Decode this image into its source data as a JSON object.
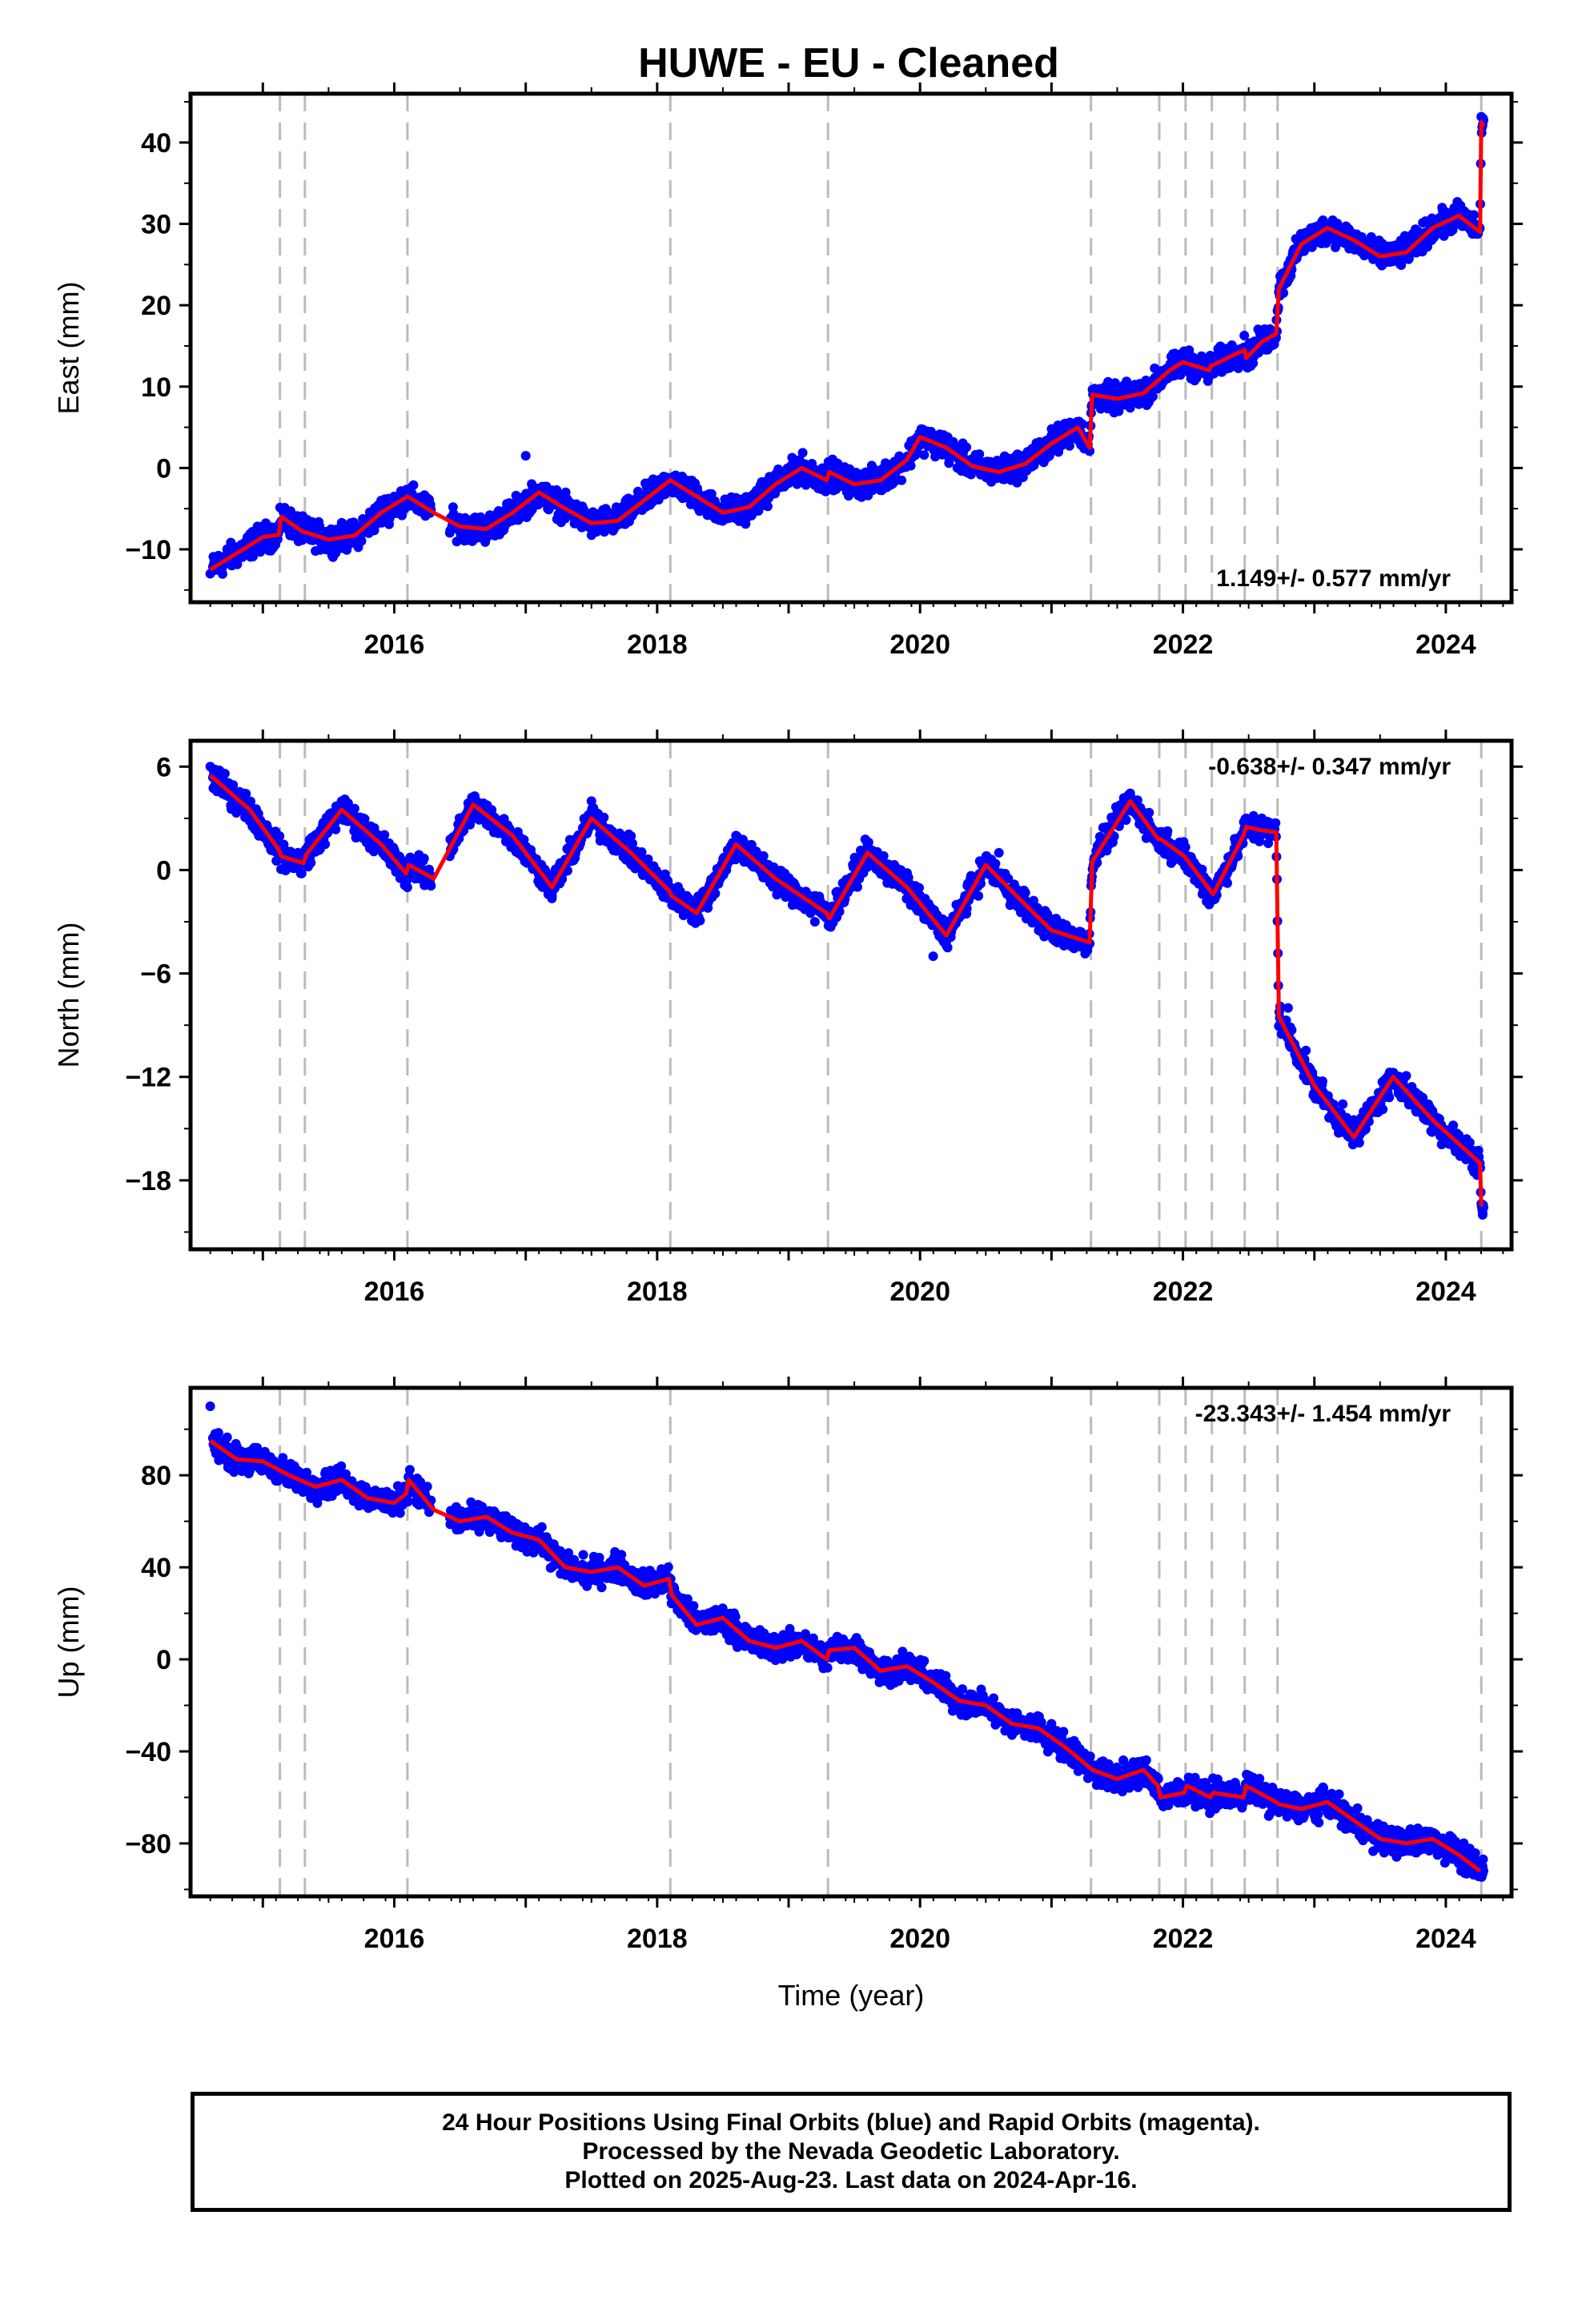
{
  "figure_title": "HUWE  - EU - Cleaned",
  "footer": {
    "line1": "24 Hour Positions Using Final Orbits (blue) and Rapid Orbits (magenta).",
    "line2": "Processed by the Nevada Geodetic Laboratory.",
    "line3": "Plotted on 2025-Aug-23. Last data on 2024-Apr-16."
  },
  "colors": {
    "data": "#0000ff",
    "model": "#ff0000",
    "breaks": "#bbbbbb",
    "frame": "#000000"
  },
  "chart_data": [
    {
      "type": "scatter",
      "component": "east",
      "ylabel": "East (mm)",
      "xlabel": "",
      "xlim": [
        2014.45,
        2024.5
      ],
      "ylim": [
        -16.5,
        46
      ],
      "yticks": [
        -10,
        0,
        10,
        20,
        30,
        40
      ],
      "xticks": [
        2016,
        2018,
        2020,
        2022,
        2024
      ],
      "rate_label": "1.149+/- 0.577 mm/yr",
      "rate_position": "bottom-right",
      "breaks": [
        2015.13,
        2015.32,
        2016.1,
        2018.1,
        2019.3,
        2021.3,
        2021.82,
        2022.02,
        2022.22,
        2022.47,
        2022.72,
        2024.27
      ],
      "series": [
        {
          "kind": "model",
          "x": [
            2014.6,
            2014.8,
            2015.0,
            2015.12,
            2015.14,
            2015.3,
            2015.5,
            2015.7,
            2015.9,
            2016.1,
            2016.3,
            2016.5,
            2016.7,
            2016.9,
            2017.1,
            2017.3,
            2017.5,
            2017.7,
            2017.9,
            2018.1,
            2018.3,
            2018.5,
            2018.7,
            2018.9,
            2019.1,
            2019.29,
            2019.31,
            2019.5,
            2019.7,
            2019.9,
            2020.0,
            2020.2,
            2020.4,
            2020.6,
            2020.8,
            2021.0,
            2021.2,
            2021.29,
            2021.31,
            2021.5,
            2021.7,
            2021.9,
            2022.0,
            2022.2,
            2022.21,
            2022.4,
            2022.47,
            2022.48,
            2022.6,
            2022.71,
            2022.73,
            2022.9,
            2023.1,
            2023.3,
            2023.5,
            2023.7,
            2023.9,
            2024.1,
            2024.26,
            2024.27,
            2024.29
          ],
          "y": [
            -12.5,
            -10.5,
            -8.5,
            -8.2,
            -6,
            -7.8,
            -8.8,
            -8.3,
            -5.5,
            -3.5,
            -5.5,
            -7.2,
            -7.5,
            -5.5,
            -3,
            -5,
            -6.8,
            -6.5,
            -4,
            -1.5,
            -3.5,
            -5.5,
            -4.8,
            -2,
            0,
            -1.5,
            -0.5,
            -2,
            -1.5,
            1,
            3.8,
            2.5,
            0.2,
            -0.5,
            0.5,
            3,
            5,
            2.5,
            9,
            8.5,
            9.2,
            12,
            13,
            12,
            12.5,
            14,
            14.5,
            13.5,
            15.5,
            16.5,
            22,
            27.5,
            29.5,
            28,
            26,
            26.5,
            29.5,
            31,
            29,
            42.5,
            42
          ]
        },
        {
          "kind": "data",
          "x": [
            2014.6,
            2015.0,
            2015.5,
            2015.9,
            2016.0,
            2016.5,
            2017.0,
            2017.5,
            2018.0,
            2018.5,
            2019.0,
            2019.5,
            2020.0,
            2020.5,
            2021.0,
            2021.4,
            2021.8,
            2022.1,
            2022.5,
            2022.8,
            2023.0,
            2023.5,
            2024.0,
            2024.28
          ],
          "y": [
            -13,
            -8.5,
            -9,
            -4,
            -3.5,
            -7.5,
            1.5,
            -7,
            -2,
            -5.5,
            -0.5,
            -2,
            4,
            -0.5,
            4,
            8.5,
            10,
            13,
            15,
            25,
            28,
            26.5,
            31,
            43
          ]
        }
      ]
    },
    {
      "type": "scatter",
      "component": "north",
      "ylabel": "North (mm)",
      "xlabel": "",
      "xlim": [
        2014.45,
        2024.5
      ],
      "ylim": [
        -22,
        7.5
      ],
      "yticks": [
        -18,
        -12,
        -6,
        0,
        6
      ],
      "xticks": [
        2016,
        2018,
        2020,
        2022,
        2024
      ],
      "rate_label": "-0.638+/- 0.347 mm/yr",
      "rate_position": "top-right",
      "breaks": [
        2015.13,
        2015.32,
        2016.1,
        2018.1,
        2019.3,
        2021.3,
        2021.82,
        2022.02,
        2022.22,
        2022.47,
        2022.72,
        2024.27
      ],
      "series": [
        {
          "kind": "model",
          "x": [
            2014.6,
            2014.9,
            2015.12,
            2015.14,
            2015.31,
            2015.33,
            2015.6,
            2015.9,
            2016.09,
            2016.11,
            2016.3,
            2016.6,
            2016.9,
            2017.2,
            2017.5,
            2017.8,
            2018.09,
            2018.11,
            2018.3,
            2018.6,
            2018.9,
            2019.29,
            2019.31,
            2019.6,
            2019.9,
            2020.2,
            2020.5,
            2020.8,
            2021.0,
            2021.29,
            2021.31,
            2021.6,
            2021.81,
            2021.83,
            2022.01,
            2022.03,
            2022.21,
            2022.23,
            2022.46,
            2022.48,
            2022.6,
            2022.71,
            2022.73,
            2023.0,
            2023.3,
            2023.6,
            2023.9,
            2024.26,
            2024.27
          ],
          "y": [
            5.5,
            3.5,
            1.2,
            0.8,
            0.4,
            0.9,
            3.5,
            1.5,
            -0.2,
            0.3,
            -0.5,
            3.8,
            2,
            -1,
            3,
            1,
            -1.2,
            -1.5,
            -2.5,
            1.5,
            -0.5,
            -2.5,
            -2.8,
            1,
            -1,
            -3.8,
            0.3,
            -2,
            -3.5,
            -4.2,
            0.5,
            4,
            1.8,
            1.8,
            0.8,
            0.6,
            -1.2,
            -1.4,
            2,
            2.5,
            2.3,
            2.2,
            -8.5,
            -12.5,
            -15.5,
            -12,
            -14.5,
            -17,
            -19.5
          ]
        },
        {
          "kind": "data",
          "x": [
            2014.6,
            2015.2,
            2015.6,
            2016.1,
            2016.6,
            2017.2,
            2017.5,
            2018.2,
            2018.6,
            2019.2,
            2019.6,
            2020.1,
            2020.6,
            2021.2,
            2021.6,
            2022.2,
            2022.6,
            2022.8,
            2023.3,
            2023.6,
            2024.1,
            2024.28
          ],
          "y": [
            6,
            0.5,
            4,
            -1,
            3.5,
            -1.5,
            4,
            -2,
            2,
            -3,
            1.5,
            -5,
            1,
            -4,
            4,
            -2,
            3,
            -8,
            -14.5,
            -12,
            -16,
            -20
          ]
        }
      ]
    },
    {
      "type": "scatter",
      "component": "up",
      "ylabel": "Up (mm)",
      "xlabel": "Time (year)",
      "xlim": [
        2014.45,
        2024.5
      ],
      "ylim": [
        -103,
        118
      ],
      "yticks": [
        -80,
        -40,
        0,
        40,
        80
      ],
      "xticks": [
        2016,
        2018,
        2020,
        2022,
        2024
      ],
      "rate_label": "-23.343+/- 1.454 mm/yr",
      "rate_position": "top-right",
      "breaks": [
        2015.13,
        2015.32,
        2016.1,
        2018.1,
        2019.3,
        2021.3,
        2021.82,
        2022.02,
        2022.22,
        2022.47,
        2022.72,
        2024.27
      ],
      "series": [
        {
          "kind": "model",
          "x": [
            2014.6,
            2014.8,
            2015.0,
            2015.2,
            2015.4,
            2015.6,
            2015.8,
            2016.0,
            2016.09,
            2016.11,
            2016.3,
            2016.5,
            2016.7,
            2016.9,
            2017.1,
            2017.3,
            2017.5,
            2017.7,
            2017.9,
            2018.09,
            2018.11,
            2018.3,
            2018.5,
            2018.7,
            2018.9,
            2019.1,
            2019.29,
            2019.31,
            2019.5,
            2019.7,
            2019.9,
            2020.1,
            2020.3,
            2020.5,
            2020.7,
            2020.9,
            2021.1,
            2021.29,
            2021.31,
            2021.5,
            2021.7,
            2021.81,
            2021.83,
            2022.01,
            2022.03,
            2022.21,
            2022.23,
            2022.46,
            2022.48,
            2022.71,
            2022.73,
            2022.9,
            2023.1,
            2023.3,
            2023.5,
            2023.7,
            2023.9,
            2024.1,
            2024.26
          ],
          "y": [
            95,
            87,
            86,
            80,
            75,
            78,
            70,
            68,
            72,
            78,
            65,
            60,
            62,
            55,
            52,
            40,
            38,
            40,
            32,
            35,
            28,
            15,
            18,
            8,
            5,
            8,
            0,
            4,
            5,
            -5,
            -3,
            -10,
            -18,
            -20,
            -28,
            -30,
            -38,
            -47,
            -48,
            -52,
            -48,
            -55,
            -60,
            -58,
            -55,
            -60,
            -58,
            -60,
            -55,
            -62,
            -63,
            -65,
            -62,
            -70,
            -78,
            -80,
            -78,
            -85,
            -92
          ]
        },
        {
          "kind": "data",
          "x": [
            2014.6,
            2014.7,
            2015.0,
            2015.5,
            2016.0,
            2016.5,
            2017.0,
            2017.5,
            2018.0,
            2018.5,
            2019.0,
            2019.5,
            2020.0,
            2020.5,
            2021.0,
            2021.5,
            2022.0,
            2022.5,
            2023.0,
            2023.5,
            2024.0,
            2024.28
          ],
          "y": [
            110,
            90,
            85,
            75,
            70,
            60,
            55,
            38,
            35,
            15,
            8,
            3,
            -5,
            -20,
            -28,
            -48,
            -58,
            -55,
            -65,
            -78,
            -85,
            -90
          ]
        }
      ]
    }
  ]
}
